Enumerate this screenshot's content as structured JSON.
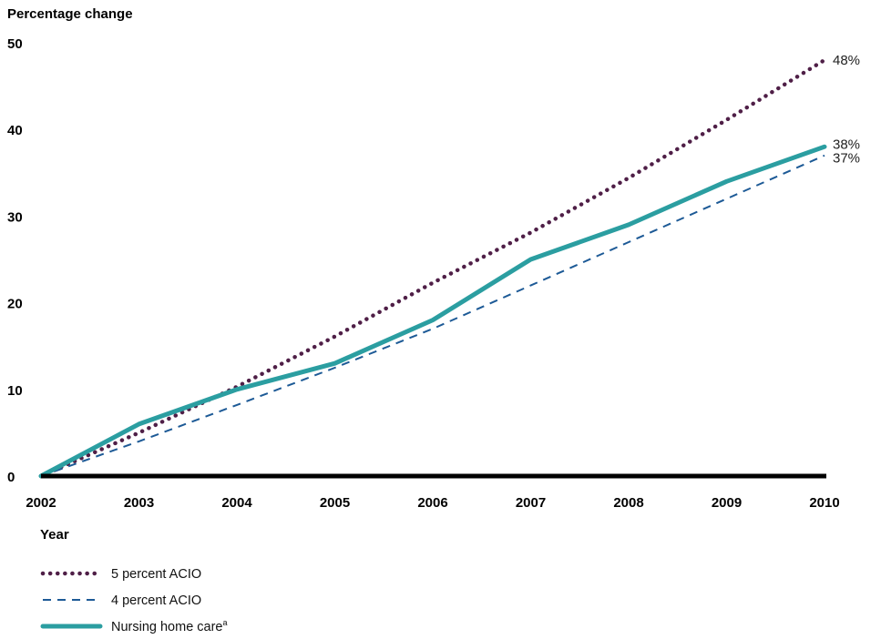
{
  "chart_data": {
    "type": "line",
    "ylabel": "Percentage change",
    "xlabel": "Year",
    "x": [
      "2002",
      "2003",
      "2004",
      "2005",
      "2006",
      "2007",
      "2008",
      "2009",
      "2010"
    ],
    "ylim": [
      0,
      50
    ],
    "yticks": [
      "0",
      "10",
      "20",
      "30",
      "40",
      "50"
    ],
    "grid": false,
    "legend_position": "bottom-left",
    "series": [
      {
        "name": "5 percent ACIO",
        "values": [
          0,
          5,
          10.3,
          16.1,
          22.3,
          28.1,
          34.4,
          41.1,
          48
        ],
        "end_label": "48%",
        "color": "#4f1f47",
        "style": "dotted"
      },
      {
        "name": "4 percent ACIO",
        "values": [
          0,
          4,
          8.2,
          12.5,
          17,
          22,
          27,
          32,
          37
        ],
        "end_label": "37%",
        "color": "#1d5a96",
        "style": "dashed"
      },
      {
        "name": "Nursing home care",
        "name_superscript": "a",
        "values": [
          0,
          6,
          10,
          13,
          18,
          25,
          29,
          34,
          38
        ],
        "end_label": "38%",
        "color": "#2b9ea1",
        "style": "solid"
      }
    ]
  }
}
